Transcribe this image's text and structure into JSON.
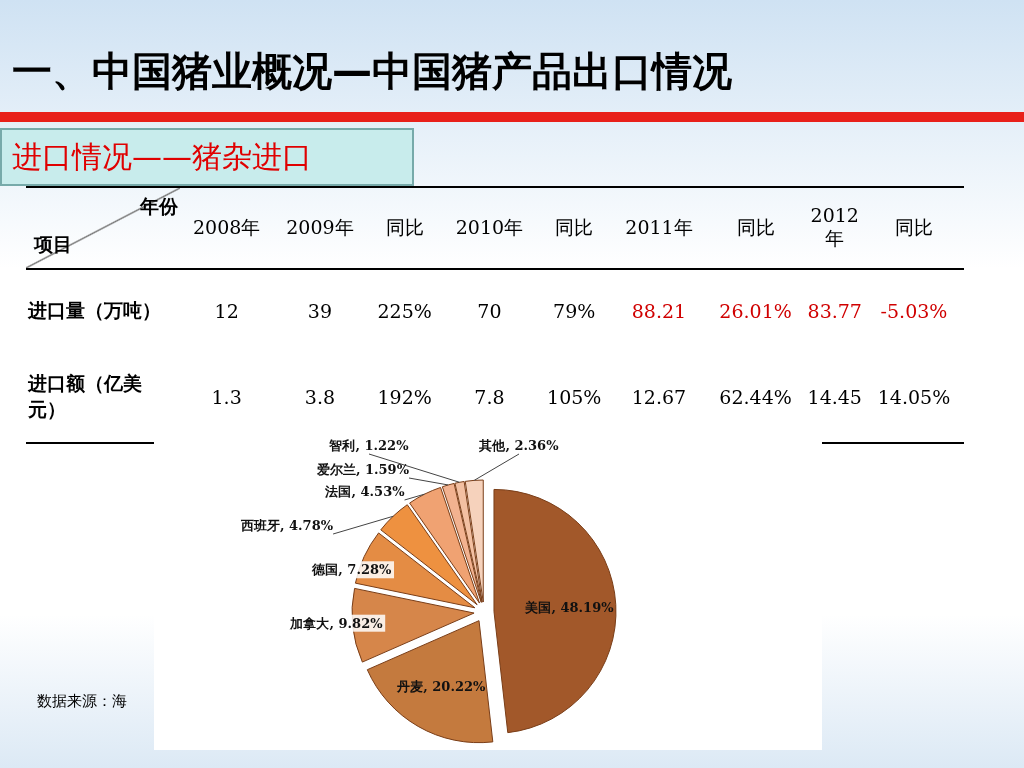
{
  "chart_data": [
    {
      "type": "other",
      "title": "一、中国猪业概况—中国猪产品出口情况",
      "subtitle": "进口情况——猪杂进口",
      "annotations": [
        "年份",
        "项目",
        "2008年",
        "2009年",
        "同比",
        "2010年",
        "同比",
        "2011年",
        "同比",
        "2012年",
        "同比",
        "进口量（万吨）",
        "12",
        "39",
        "225%",
        "70",
        "79%",
        "88.21",
        "26.01%",
        "83.77",
        "-5.03%",
        "进口额（亿美元）",
        "1.3",
        "3.8",
        "192%",
        "7.8",
        "105%",
        "12.67",
        "62.44%",
        "14.45",
        "14.05%"
      ]
    },
    {
      "type": "pie",
      "categories": [
        "美国",
        "丹麦",
        "加拿大",
        "德国",
        "西班牙",
        "法国",
        "爱尔兰",
        "智利",
        "其他"
      ],
      "values": [
        48.19,
        20.22,
        9.82,
        7.28,
        4.78,
        4.53,
        1.59,
        1.22,
        2.36
      ],
      "colors": [
        "#a2582a",
        "#c47a3e",
        "#d6864a",
        "#e48c44",
        "#ee9140",
        "#f0a272",
        "#f2b290",
        "#f3c0a2",
        "#f6d2bc"
      ],
      "value_labels": [
        "48.19%",
        "20.22%",
        "9.82%",
        "7.28%",
        "4.78%",
        "4.53%",
        "1.59%",
        "1.22%",
        "2.36%"
      ],
      "annotations": [
        "数据来源：海"
      ]
    }
  ]
}
